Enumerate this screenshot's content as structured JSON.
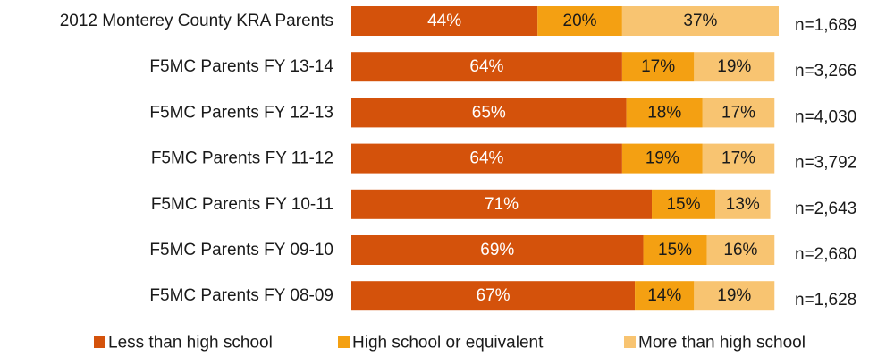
{
  "chart_data": {
    "type": "bar",
    "orientation": "horizontal",
    "stacked": true,
    "categories": [
      "2012 Monterey County KRA Parents",
      "F5MC Parents FY 13-14",
      "F5MC Parents FY 12-13",
      "F5MC Parents FY 11-12",
      "F5MC Parents FY 10-11",
      "F5MC Parents FY 09-10",
      "F5MC Parents FY 08-09"
    ],
    "series": [
      {
        "name": "Less than high school",
        "color": "#d4520b",
        "values": [
          44,
          64,
          65,
          64,
          71,
          69,
          67
        ],
        "labels": [
          "44%",
          "64%",
          "65%",
          "64%",
          "71%",
          "69%",
          "67%"
        ]
      },
      {
        "name": "High school or equivalent",
        "color": "#f4a012",
        "values": [
          20,
          17,
          18,
          19,
          15,
          15,
          14
        ],
        "labels": [
          "20%",
          "17%",
          "18%",
          "19%",
          "15%",
          "15%",
          "14%"
        ]
      },
      {
        "name": "More than high school",
        "color": "#f8c471",
        "values": [
          37,
          19,
          17,
          17,
          13,
          16,
          19
        ],
        "labels": [
          "37%",
          "19%",
          "17%",
          "17%",
          "13%",
          "16%",
          "19%"
        ]
      }
    ],
    "n_labels": [
      "n=1,689",
      "n=3,266",
      "n=4,030",
      "n=3,792",
      "n=2,643",
      "n=2,680",
      "n=1,628"
    ],
    "xlim": [
      0,
      101
    ],
    "title": "",
    "xlabel": "",
    "ylabel": "",
    "grid": false,
    "legend_position": "bottom"
  }
}
